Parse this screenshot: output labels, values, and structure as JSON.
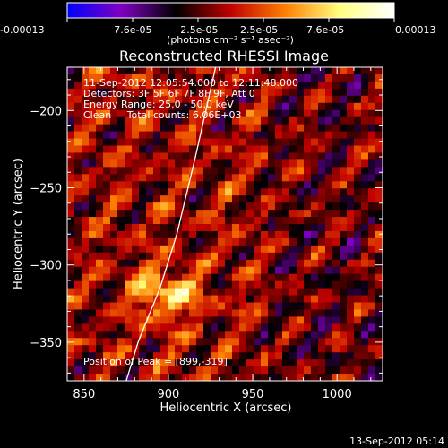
{
  "colorbar": {
    "ticks": [
      "-0.00013",
      "−7.6e-05",
      "−2.5e-05",
      "2.5e-05",
      "7.6e-05",
      "0.00013"
    ],
    "unit_label": "(photons cm⁻² s⁻¹ asec⁻²)",
    "colors": [
      "#0000ff",
      "#8000c0",
      "#000000",
      "#c00000",
      "#ff8000",
      "#ffff80",
      "#ffffff"
    ]
  },
  "chart_data": {
    "type": "heatmap",
    "title": "Reconstructed RHESSI Image",
    "xlabel": "Heliocentric X (arcsec)",
    "ylabel": "Heliocentric Y (arcsec)",
    "xlim": [
      840,
      1027
    ],
    "ylim": [
      -375,
      -172
    ],
    "x_ticks": [
      850,
      900,
      950,
      1000
    ],
    "y_ticks": [
      -200,
      -250,
      -300,
      -350
    ],
    "x_tick_labels": [
      "850",
      "900",
      "950",
      "1000"
    ],
    "y_tick_labels": [
      "−200",
      "−250",
      "−300",
      "−350"
    ],
    "value_range": [
      -0.00013,
      0.00013
    ],
    "peak": {
      "x": 899,
      "y": -319
    },
    "limb_curve": [
      [
        928,
        -172
      ],
      [
        916,
        -230
      ],
      [
        905,
        -280
      ],
      [
        895,
        -315
      ],
      [
        882,
        -350
      ],
      [
        875,
        -375
      ]
    ],
    "annotations": {
      "time_range": "11-Sep-2012 12:05:54.000 to 12:11:48.000",
      "detectors": "Detectors: 3F 5F 6F 7F 8F 9F, Att 0",
      "energy": "Energy Range: 25.0 - 50.0 keV",
      "clean": "Clean     Total counts: 6.06E+03",
      "peak_label": "Position of Peak = [899,-319]"
    }
  },
  "footer": {
    "timestamp": "13-Sep-2012 05:14"
  }
}
